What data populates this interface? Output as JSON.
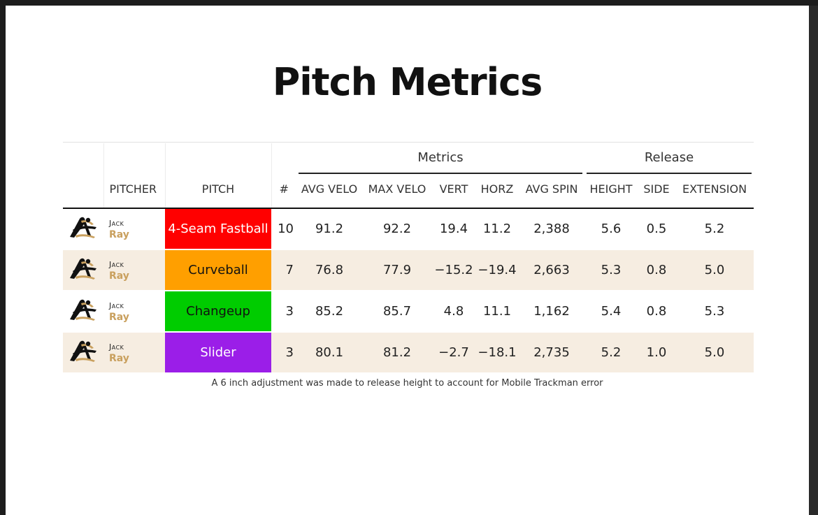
{
  "title": "Pitch Metrics",
  "table": {
    "spanners": {
      "metrics": "Metrics",
      "release": "Release"
    },
    "columns": {
      "pitcher": "PITCHER",
      "pitch": "PITCH",
      "count": "#",
      "avg_velo": "AVG VELO",
      "max_velo": "MAX VELO",
      "vert": "VERT",
      "horz": "HORZ",
      "avg_spin": "AVG SPIN",
      "height": "HEIGHT",
      "side": "SIDE",
      "extension": "EXTENSION"
    },
    "rows": [
      {
        "first": "Jack",
        "last": "Ray",
        "pitch": "4-Seam Fastball",
        "color": "#ff0000",
        "light_text": true,
        "count": "10",
        "avg_velo": "91.2",
        "max_velo": "92.2",
        "vert": "19.4",
        "horz": "11.2",
        "avg_spin": "2,388",
        "height": "5.6",
        "side": "0.5",
        "extension": "5.2"
      },
      {
        "first": "Jack",
        "last": "Ray",
        "pitch": "Curveball",
        "color": "#ff9f00",
        "light_text": false,
        "count": "7",
        "avg_velo": "76.8",
        "max_velo": "77.9",
        "vert": "−15.2",
        "horz": "−19.4",
        "avg_spin": "2,663",
        "height": "5.3",
        "side": "0.8",
        "extension": "5.0"
      },
      {
        "first": "Jack",
        "last": "Ray",
        "pitch": "Changeup",
        "color": "#00cc00",
        "light_text": false,
        "count": "3",
        "avg_velo": "85.2",
        "max_velo": "85.7",
        "vert": "4.8",
        "horz": "11.1",
        "avg_spin": "1,162",
        "height": "5.4",
        "side": "0.8",
        "extension": "5.3"
      },
      {
        "first": "Jack",
        "last": "Ray",
        "pitch": "Slider",
        "color": "#9b1ee8",
        "light_text": true,
        "count": "3",
        "avg_velo": "80.1",
        "max_velo": "81.2",
        "vert": "−2.7",
        "horz": "−18.1",
        "avg_spin": "2,735",
        "height": "5.2",
        "side": "1.0",
        "extension": "5.0"
      }
    ]
  },
  "footnote": "A 6 inch adjustment was made to release height to account for Mobile Trackman error",
  "icons": {
    "team_logo": "team-logo-icon"
  }
}
